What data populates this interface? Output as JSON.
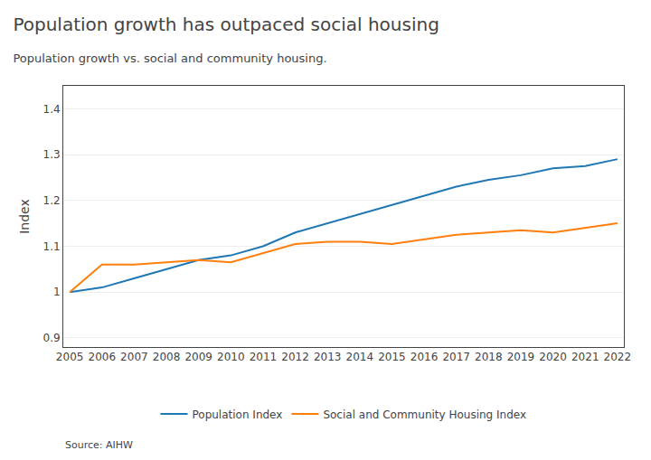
{
  "chart_data": {
    "type": "line",
    "title": "Population growth has outpaced social housing",
    "subtitle": "Population growth vs. social and community housing.",
    "source": "Source: AIHW",
    "ylabel": "Index",
    "x": [
      2005,
      2006,
      2007,
      2008,
      2009,
      2010,
      2011,
      2012,
      2013,
      2014,
      2015,
      2016,
      2017,
      2018,
      2019,
      2020,
      2021,
      2022
    ],
    "series": [
      {
        "name": "Population Index",
        "values": [
          1.0,
          1.01,
          1.03,
          1.05,
          1.07,
          1.08,
          1.1,
          1.13,
          1.15,
          1.17,
          1.19,
          1.21,
          1.23,
          1.245,
          1.255,
          1.27,
          1.275,
          1.29
        ]
      },
      {
        "name": "Social and Community Housing Index",
        "values": [
          1.0,
          1.06,
          1.06,
          1.065,
          1.07,
          1.065,
          1.085,
          1.105,
          1.11,
          1.11,
          1.105,
          1.115,
          1.125,
          1.13,
          1.135,
          1.13,
          1.14,
          1.15
        ]
      }
    ],
    "xlim": [
      2004.8,
      2022.2
    ],
    "xticks": [
      2005,
      2006,
      2007,
      2008,
      2009,
      2010,
      2011,
      2012,
      2013,
      2014,
      2015,
      2016,
      2017,
      2018,
      2019,
      2020,
      2021,
      2022
    ],
    "ylim": [
      0.88,
      1.45
    ],
    "yticks": [
      0.9,
      1,
      1.1,
      1.2,
      1.3,
      1.4
    ],
    "grid": "y",
    "legend": "bottom"
  }
}
